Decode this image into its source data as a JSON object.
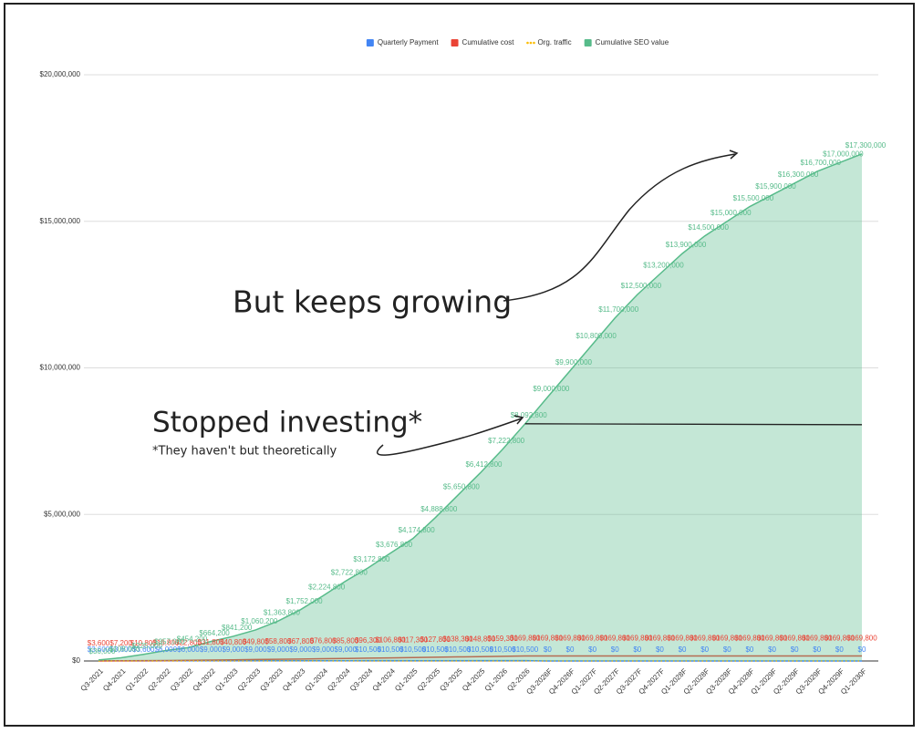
{
  "chart_data": {
    "type": "area-line",
    "categories": [
      "Q3-2021",
      "Q4-2021",
      "Q1-2022",
      "Q2-2022",
      "Q3-2022",
      "Q4-2022",
      "Q1-2023",
      "Q2-2023",
      "Q3-2023",
      "Q4-2023",
      "Q1-2024",
      "Q2-2024",
      "Q3-2024",
      "Q4-2024",
      "Q1-2025",
      "Q2-2025",
      "Q3-2025",
      "Q4-2025",
      "Q1-2026",
      "Q2-2026",
      "Q3-2026F",
      "Q4-2026F",
      "Q1-2027F",
      "Q2-2027F",
      "Q3-2027F",
      "Q4-2027F",
      "Q1-2028F",
      "Q2-2028F",
      "Q3-2028F",
      "Q4-2028F",
      "Q1-2029F",
      "Q2-2029F",
      "Q3-2029F",
      "Q4-2029F",
      "Q1-2030F"
    ],
    "series": [
      {
        "name": "Quarterly Payment",
        "color": "#4285f4",
        "kind": "line",
        "values": [
          3600,
          3600,
          3600,
          6000,
          6000,
          9000,
          9000,
          9000,
          9000,
          9000,
          9000,
          9000,
          10500,
          10500,
          10500,
          10500,
          10500,
          10500,
          10500,
          10500,
          0,
          0,
          0,
          0,
          0,
          0,
          0,
          0,
          0,
          0,
          0,
          0,
          0,
          0,
          0
        ],
        "value_labels": [
          "$3,600",
          "$3,600",
          "$3,600",
          "$6,000",
          "$6,000",
          "$9,000",
          "$9,000",
          "$9,000",
          "$9,000",
          "$9,000",
          "$9,000",
          "$9,000",
          "$10,500",
          "$10,500",
          "$10,500",
          "$10,500",
          "$10,500",
          "$10,500",
          "$10,500",
          "$10,500",
          "$0",
          "$0",
          "$0",
          "$0",
          "$0",
          "$0",
          "$0",
          "$0",
          "$0",
          "$0",
          "$0",
          "$0",
          "$0",
          "$0",
          "$0"
        ]
      },
      {
        "name": "Cumulative cost",
        "color": "#ea4335",
        "kind": "line",
        "values": [
          3600,
          7200,
          10800,
          16800,
          22800,
          31800,
          40800,
          49800,
          58800,
          67800,
          76800,
          85800,
          96300,
          106800,
          117300,
          127800,
          138300,
          148800,
          159300,
          169800,
          169800,
          169800,
          169800,
          169800,
          169800,
          169800,
          169800,
          169800,
          169800,
          169800,
          169800,
          169800,
          169800,
          169800,
          169800
        ],
        "value_labels": [
          "$3,600",
          "$7,200",
          "$10,800",
          "$16,800",
          "$22,800",
          "$31,800",
          "$40,800",
          "$49,800",
          "$58,800",
          "$67,800",
          "$76,800",
          "$85,800",
          "$96,300",
          "$106,800",
          "$117,300",
          "$127,800",
          "$138,300",
          "$148,800",
          "$159,300",
          "$169,800",
          "$169,800",
          "$169,800",
          "$169,800",
          "$169,800",
          "$169,800",
          "$169,800",
          "$169,800",
          "$169,800",
          "$169,800",
          "$169,800",
          "$169,800",
          "$169,800",
          "$169,800",
          "$169,800",
          "$169,800"
        ]
      },
      {
        "name": "Org. traffic",
        "color": "#fbbc04",
        "kind": "dotted",
        "values": [
          0,
          0,
          0,
          0,
          0,
          0,
          0,
          0,
          0,
          0,
          0,
          0,
          0,
          0,
          0,
          0,
          0,
          0,
          0,
          0,
          0,
          0,
          0,
          0,
          0,
          0,
          0,
          0,
          0,
          0,
          0,
          0,
          0,
          0,
          0
        ]
      },
      {
        "name": "Cumulative SEO value",
        "color": "#57bb8a",
        "kind": "area",
        "values": [
          36000,
          108000,
          225000,
          357000,
          454200,
          664200,
          841200,
          1060200,
          1363800,
          1752000,
          2224800,
          2722800,
          3172800,
          3676800,
          4174800,
          4888800,
          5650800,
          6412800,
          7222800,
          8092800,
          9000000,
          9900000,
          10800000,
          11700000,
          12500000,
          13200000,
          13900000,
          14500000,
          15000000,
          15500000,
          15900000,
          16300000,
          16700000,
          17000000,
          17300000
        ],
        "value_labels": [
          "$36,000",
          "$108,000",
          "$225,000",
          "$357,000",
          "$454,200",
          "$664,200",
          "$841,200",
          "$1,060,200",
          "$1,363,800",
          "$1,752,000",
          "$2,224,800",
          "$2,722,800",
          "$3,172,800",
          "$3,676,800",
          "$4,174,800",
          "$4,888,800",
          "$5,650,800",
          "$6,412,800",
          "$7,222,800",
          "$8,092,800",
          "$9,000,000",
          "$9,900,000",
          "$10,800,000",
          "$11,700,000",
          "$12,500,000",
          "$13,200,000",
          "$13,900,000",
          "$14,500,000",
          "$15,000,000",
          "$15,500,000",
          "$15,900,000",
          "$16,300,000",
          "$16,700,000",
          "$17,000,000",
          "$17,300,000"
        ]
      }
    ],
    "ylim": [
      0,
      20000000
    ],
    "yticks": [
      {
        "value": 0,
        "label": "$0"
      },
      {
        "value": 5000000,
        "label": "$5,000,000"
      },
      {
        "value": 10000000,
        "label": "$10,000,000"
      },
      {
        "value": 15000000,
        "label": "$15,000,000"
      },
      {
        "value": 20000000,
        "label": "$20,000,000"
      }
    ],
    "grid": true,
    "legend": "top",
    "annotations": [
      "But keeps growing",
      "Stopped investing*",
      "*They haven't but theoretically"
    ]
  }
}
